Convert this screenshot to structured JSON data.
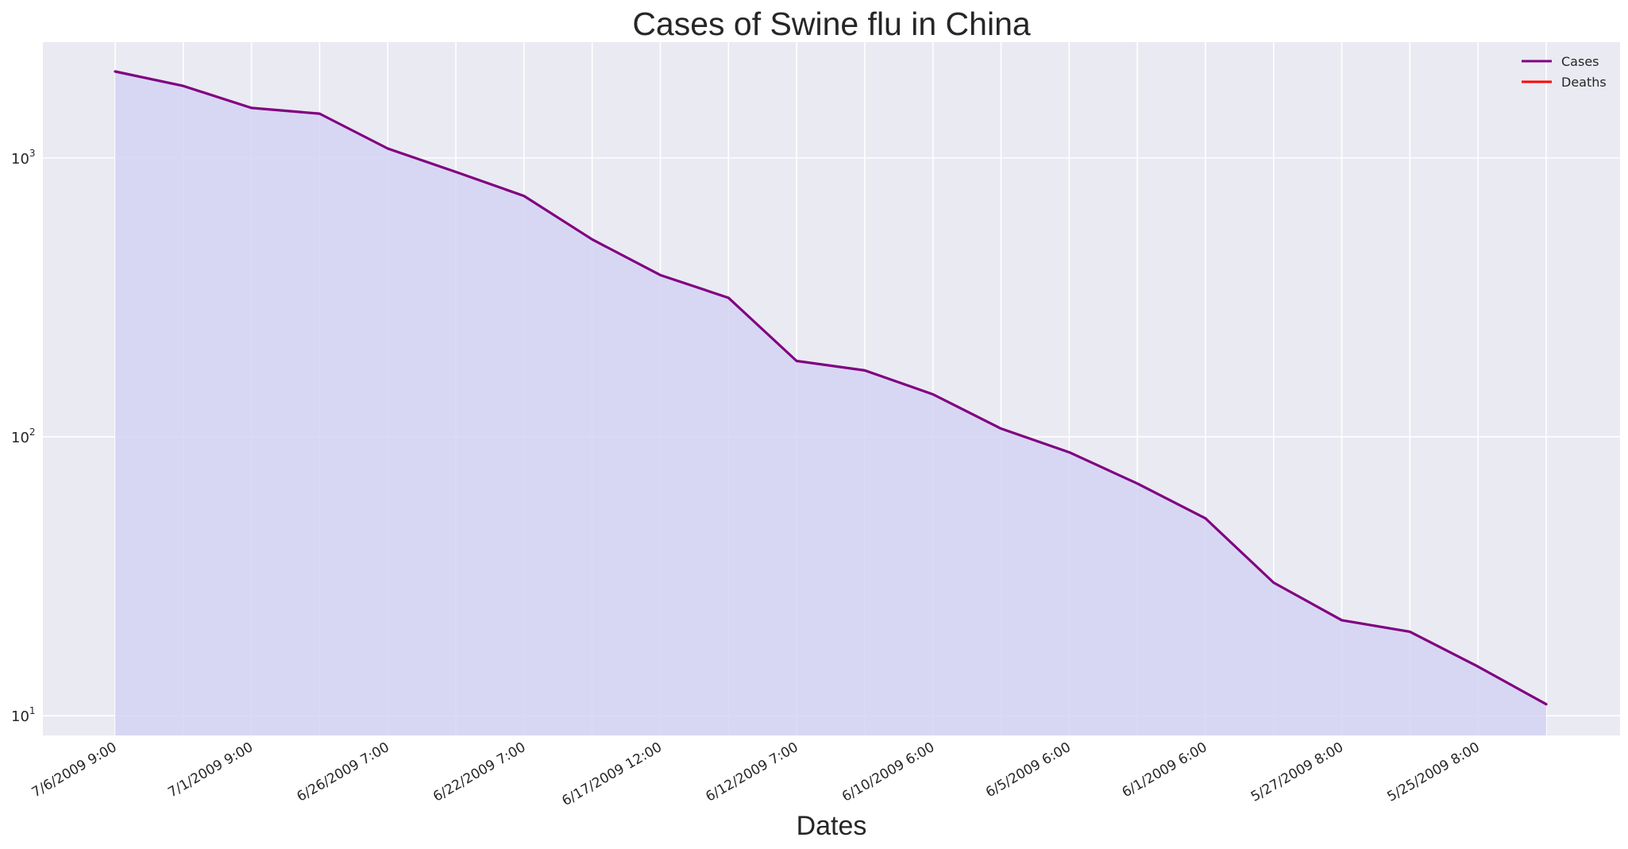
{
  "chart_data": {
    "type": "line",
    "title": "Cases of Swine flu in China",
    "xlabel": "Dates",
    "ylabel": "",
    "yscale": "log",
    "ylim": [
      8.5,
      2600
    ],
    "yticks": [
      {
        "value": 10,
        "base": "10",
        "exp": "1"
      },
      {
        "value": 100,
        "base": "10",
        "exp": "2"
      },
      {
        "value": 1000,
        "base": "10",
        "exp": "3"
      }
    ],
    "grid": true,
    "legend_position": "top-right",
    "x_labels": [
      "7/6/2009 9:00",
      "7/1/2009 9:00",
      "6/26/2009 7:00",
      "6/22/2009 7:00",
      "6/17/2009 12:00",
      "6/12/2009 7:00",
      "6/10/2009 6:00",
      "6/5/2009 6:00",
      "6/1/2009 6:00",
      "5/27/2009 8:00",
      "5/25/2009 8:00"
    ],
    "tick_every": 2,
    "series": [
      {
        "name": "Cases",
        "color": "#800080",
        "fill_color": "#d3d3f3",
        "values": [
          2040,
          1810,
          1510,
          1440,
          1080,
          890,
          730,
          510,
          380,
          315,
          187,
          173,
          142,
          107,
          88,
          68,
          51,
          30,
          22,
          20,
          15,
          11
        ]
      },
      {
        "name": "Deaths",
        "color": "#ff0000",
        "values": []
      }
    ]
  }
}
